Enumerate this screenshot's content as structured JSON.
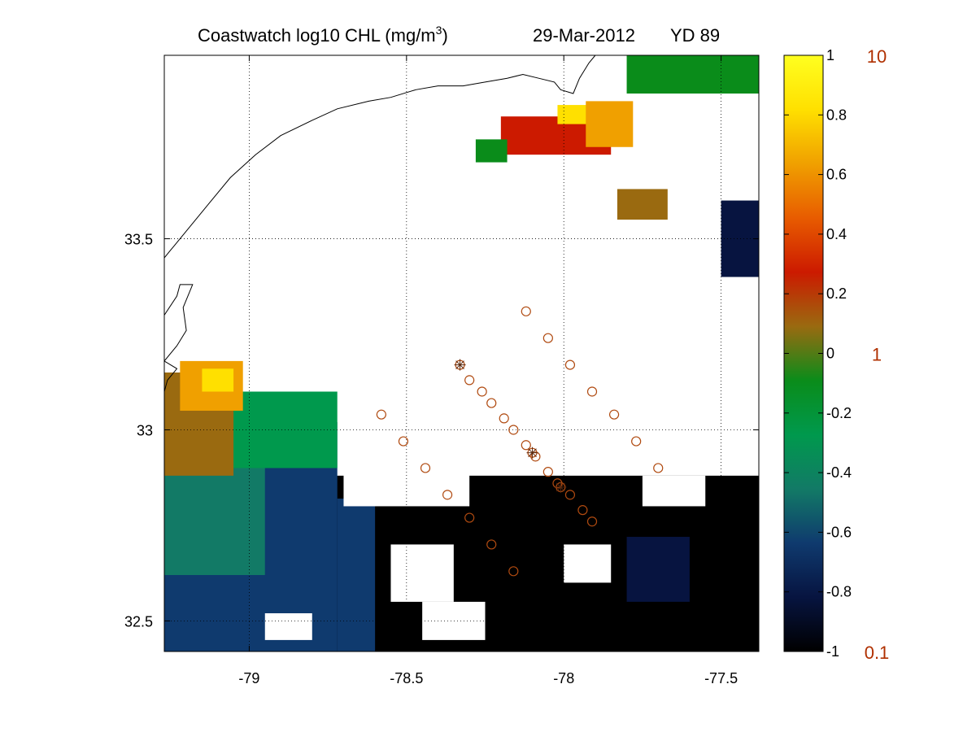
{
  "title": {
    "prefix": "Coastwatch  log10  CHL (mg/m",
    "superscript": "3",
    "suffix": ")",
    "date": "29-Mar-2012",
    "yearday": "YD 89"
  },
  "chart_data": {
    "type": "heatmap",
    "xlim": [
      -79.27,
      -77.38
    ],
    "ylim": [
      32.42,
      33.98
    ],
    "x_ticks": [
      -79,
      -78.5,
      -78,
      -77.5
    ],
    "x_tick_labels": [
      "-79",
      "-78.5",
      "-78",
      "-77.5"
    ],
    "y_ticks": [
      32.5,
      33,
      33.5
    ],
    "y_tick_labels": [
      "32.5",
      "33",
      "33.5"
    ],
    "grid": "dotted",
    "colorbar": {
      "range": [
        -1,
        1
      ],
      "ticks": [
        1,
        0.8,
        0.6,
        0.4,
        0.2,
        0,
        -0.2,
        -0.4,
        -0.6,
        -0.8,
        -1
      ],
      "tick_labels": [
        "1",
        "0.8",
        "0.6",
        "0.4",
        "0.2",
        "0",
        "-0.2",
        "-0.4",
        "-0.6",
        "-0.8",
        "-1"
      ],
      "secondary_labels": [
        {
          "value": 1,
          "label": "10"
        },
        {
          "value": 0,
          "label": "1"
        },
        {
          "value": -1,
          "label": "0.1"
        }
      ],
      "colors": [
        "#000000",
        "#071440",
        "#0f3a6e",
        "#127a66",
        "#00994d",
        "#0a8c1a",
        "#9a6a10",
        "#cc1a00",
        "#e85c00",
        "#f0a000",
        "#ffe000",
        "#ffff20"
      ]
    },
    "stations": [
      {
        "lon": -78.33,
        "lat": 33.17,
        "marker": "asterisk"
      },
      {
        "lon": -78.3,
        "lat": 33.13
      },
      {
        "lon": -78.26,
        "lat": 33.1
      },
      {
        "lon": -78.23,
        "lat": 33.07
      },
      {
        "lon": -78.19,
        "lat": 33.03
      },
      {
        "lon": -78.16,
        "lat": 33.0
      },
      {
        "lon": -78.12,
        "lat": 32.96
      },
      {
        "lon": -78.09,
        "lat": 32.93
      },
      {
        "lon": -78.1,
        "lat": 32.94,
        "marker": "asterisk"
      },
      {
        "lon": -78.05,
        "lat": 32.89
      },
      {
        "lon": -78.02,
        "lat": 32.86
      },
      {
        "lon": -78.01,
        "lat": 32.85,
        "marker": "asterisk"
      },
      {
        "lon": -77.98,
        "lat": 32.83
      },
      {
        "lon": -77.94,
        "lat": 32.79
      },
      {
        "lon": -77.91,
        "lat": 32.76
      },
      {
        "lon": -78.12,
        "lat": 33.31
      },
      {
        "lon": -78.05,
        "lat": 33.24
      },
      {
        "lon": -77.98,
        "lat": 33.17
      },
      {
        "lon": -77.91,
        "lat": 33.1
      },
      {
        "lon": -77.84,
        "lat": 33.04
      },
      {
        "lon": -77.77,
        "lat": 32.97
      },
      {
        "lon": -77.7,
        "lat": 32.9
      },
      {
        "lon": -78.58,
        "lat": 33.04
      },
      {
        "lon": -78.51,
        "lat": 32.97
      },
      {
        "lon": -78.44,
        "lat": 32.9
      },
      {
        "lon": -78.37,
        "lat": 32.83
      },
      {
        "lon": -78.3,
        "lat": 32.77
      },
      {
        "lon": -78.23,
        "lat": 32.7
      },
      {
        "lon": -78.16,
        "lat": 32.63
      }
    ],
    "station_color": "#b04a10",
    "coastline": [
      [
        -79.27,
        33.3
      ],
      [
        -79.23,
        33.35
      ],
      [
        -79.22,
        33.38
      ],
      [
        -79.18,
        33.38
      ],
      [
        -79.21,
        33.32
      ],
      [
        -79.2,
        33.26
      ],
      [
        -79.23,
        33.22
      ],
      [
        -79.27,
        33.18
      ],
      [
        -79.23,
        33.16
      ],
      [
        -79.26,
        33.13
      ],
      [
        -79.27,
        33.1
      ],
      [
        -79.27,
        33.45
      ],
      [
        -79.25,
        33.47
      ],
      [
        -79.24,
        33.48
      ],
      [
        -79.2,
        33.52
      ],
      [
        -79.13,
        33.59
      ],
      [
        -79.06,
        33.66
      ],
      [
        -78.98,
        33.72
      ],
      [
        -78.9,
        33.77
      ],
      [
        -78.8,
        33.81
      ],
      [
        -78.72,
        33.84
      ],
      [
        -78.62,
        33.86
      ],
      [
        -78.55,
        33.87
      ],
      [
        -78.47,
        33.89
      ],
      [
        -78.4,
        33.9
      ],
      [
        -78.32,
        33.9
      ],
      [
        -78.25,
        33.91
      ],
      [
        -78.18,
        33.92
      ],
      [
        -78.13,
        33.93
      ],
      [
        -78.08,
        33.92
      ],
      [
        -78.03,
        33.91
      ],
      [
        -78.01,
        33.89
      ],
      [
        -77.97,
        33.88
      ],
      [
        -77.95,
        33.92
      ],
      [
        -77.92,
        33.96
      ],
      [
        -77.9,
        33.98
      ]
    ]
  }
}
